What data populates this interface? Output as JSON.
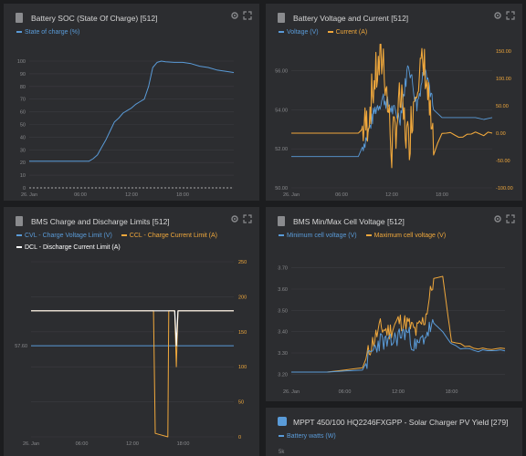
{
  "colors": {
    "background": "#1c1d1f",
    "panel": "#2c2d30",
    "blue": "#5a9bd8",
    "orange": "#f0a83c",
    "white": "#ffffff",
    "grid": "#3b3c40",
    "tick": "#8a8b8e"
  },
  "icons": {
    "panel": "database-icon",
    "settings": "gear-icon",
    "expand": "expand-icon"
  },
  "panels": {
    "soc": {
      "title": "Battery SOC (State Of Charge) [512]",
      "legend": [
        {
          "label": "State of charge (%)",
          "color": "#5a9bd8"
        }
      ],
      "yticks": [
        "100",
        "90",
        "80",
        "70",
        "60",
        "50",
        "40",
        "30",
        "20",
        "10",
        "0"
      ],
      "xticks": [
        "26. Jan",
        "06:00",
        "12:00",
        "18:00"
      ]
    },
    "voltage_current": {
      "title": "Battery Voltage and Current [512]",
      "legend": [
        {
          "label": "Voltage (V)",
          "color": "#5a9bd8"
        },
        {
          "label": "Current (A)",
          "color": "#f0a83c"
        }
      ],
      "yticks_left": [
        "56.00",
        "54.00",
        "52.00",
        "50.00"
      ],
      "yticks_right": [
        "150.00",
        "100.00",
        "50.00",
        "0.00",
        "-50.00",
        "-100.00"
      ],
      "xticks": [
        "26. Jan",
        "06:00",
        "12:00",
        "18:00"
      ]
    },
    "limits": {
      "title": "BMS Charge and Discharge Limits [512]",
      "legend": [
        {
          "label": "CVL - Charge Voltage Limit (V)",
          "color": "#5a9bd8"
        },
        {
          "label": "CCL - Charge Current Limit (A)",
          "color": "#f0a83c"
        }
      ],
      "legend2": {
        "label": "DCL - Discharge Current Limit (A)",
        "color": "#ffffff"
      },
      "yticks_left": [
        "57.60"
      ],
      "yticks_right": [
        "250",
        "200",
        "150",
        "100",
        "50",
        "0"
      ],
      "xticks": [
        "26. Jan",
        "06:00",
        "12:00",
        "18:00"
      ]
    },
    "cells": {
      "title": "BMS Min/Max Cell Voltage [512]",
      "legend": [
        {
          "label": "Minimum cell voltage (V)",
          "color": "#5a9bd8"
        },
        {
          "label": "Maximum cell voltage (V)",
          "color": "#f0a83c"
        }
      ],
      "yticks": [
        "3.70",
        "3.60",
        "3.50",
        "3.40",
        "3.30",
        "3.20"
      ],
      "xticks": [
        "26. Jan",
        "06:00",
        "12:00",
        "18:00"
      ]
    },
    "mppt": {
      "title": "MPPT 450/100 HQ2246FXGPP - Solar Charger PV Yield [279]",
      "legend": [
        {
          "label": "Battery watts (W)",
          "color": "#5a9bd8"
        }
      ],
      "yticks": [
        "5k"
      ]
    }
  },
  "chart_data": [
    {
      "type": "line",
      "title": "Battery SOC (State Of Charge) [512]",
      "x_hours": [
        0,
        1,
        2,
        3,
        4,
        5,
        6,
        7,
        7.5,
        8,
        8.5,
        9,
        9.5,
        10,
        10.5,
        11,
        11.5,
        12,
        12.5,
        13,
        13.5,
        14,
        14.5,
        15,
        15.5,
        16,
        17,
        18,
        19,
        20,
        21,
        22,
        23,
        24
      ],
      "series": [
        {
          "name": "State of charge (%)",
          "values": [
            21,
            21,
            21,
            21,
            21,
            21,
            21,
            21,
            23,
            26,
            32,
            38,
            45,
            52,
            55,
            59,
            61,
            63,
            66,
            68,
            70,
            80,
            95,
            99,
            100,
            99.5,
            99,
            99,
            98,
            96,
            95,
            93,
            92,
            91
          ]
        }
      ],
      "ylim": [
        0,
        100
      ]
    },
    {
      "type": "line",
      "title": "Battery Voltage and Current [512]",
      "x_hours": [
        0,
        4,
        8,
        9,
        10,
        11,
        12,
        13,
        14,
        15,
        16,
        17,
        18,
        19,
        20,
        21,
        22,
        23,
        24
      ],
      "series": [
        {
          "name": "Voltage (V)",
          "values": [
            51.6,
            51.6,
            51.6,
            52.6,
            54.0,
            54.6,
            54.0,
            53.6,
            56.4,
            54.2,
            56.4,
            54.0,
            53.6,
            53.6,
            53.6,
            53.6,
            53.6,
            53.5,
            53.6
          ]
        },
        {
          "name": "Current (A)",
          "values": [
            0,
            0,
            0,
            15,
            100,
            140,
            -30,
            60,
            -20,
            110,
            120,
            -40,
            0,
            0,
            -10,
            -5,
            0,
            -2,
            0
          ]
        }
      ],
      "ylim_left": [
        50,
        57
      ],
      "ylim_right": [
        -100,
        150
      ]
    },
    {
      "type": "line",
      "title": "BMS Charge and Discharge Limits [512]",
      "x_hours": [
        0,
        14.5,
        14.7,
        16.2,
        16.3,
        17,
        17.2,
        17.4,
        18,
        24
      ],
      "series": [
        {
          "name": "CVL - Charge Voltage Limit (V)",
          "values": [
            57.6,
            57.6,
            57.6,
            57.6,
            57.6,
            57.6,
            57.6,
            57.6,
            57.6,
            57.6
          ]
        },
        {
          "name": "CCL - Charge Current Limit (A)",
          "values": [
            180,
            180,
            5,
            0,
            180,
            180,
            100,
            180,
            180,
            180
          ]
        },
        {
          "name": "DCL - Discharge Current Limit (A)",
          "values": [
            180,
            180,
            180,
            180,
            180,
            180,
            130,
            180,
            180,
            180
          ]
        }
      ],
      "ylim_right": [
        0,
        250
      ]
    },
    {
      "type": "line",
      "title": "BMS Min/Max Cell Voltage [512]",
      "x_hours": [
        0,
        4,
        8,
        9,
        10,
        11,
        12,
        13,
        14,
        15,
        16,
        17,
        18,
        19,
        20,
        21,
        22,
        23,
        24
      ],
      "series": [
        {
          "name": "Minimum cell voltage (V)",
          "values": [
            3.21,
            3.21,
            3.22,
            3.3,
            3.36,
            3.34,
            3.38,
            3.4,
            3.32,
            3.38,
            3.44,
            3.4,
            3.34,
            3.32,
            3.32,
            3.31,
            3.31,
            3.31,
            3.31
          ]
        },
        {
          "name": "Maximum cell voltage (V)",
          "values": [
            3.21,
            3.21,
            3.23,
            3.34,
            3.42,
            3.4,
            3.45,
            3.44,
            3.4,
            3.46,
            3.65,
            3.66,
            3.35,
            3.34,
            3.33,
            3.32,
            3.32,
            3.32,
            3.32
          ]
        }
      ],
      "ylim": [
        3.15,
        3.75
      ]
    }
  ]
}
